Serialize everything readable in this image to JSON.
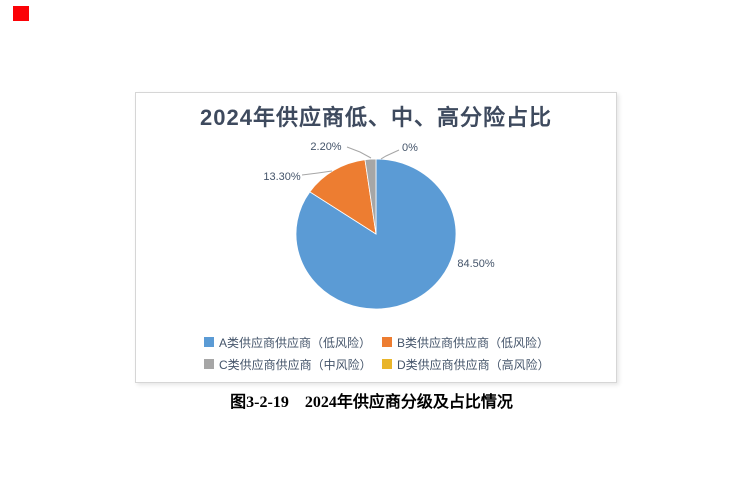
{
  "marker": {
    "color": "#fb0207"
  },
  "chart_data": {
    "type": "pie",
    "title": "2024年供应商低、中、高分险占比",
    "labels": [
      "A类供应商供应商（低风险）",
      "B类供应商供应商（低风险）",
      "C类供应商供应商（中风险）",
      "D类供应商供应商（高风险）"
    ],
    "values": [
      84.5,
      13.3,
      2.2,
      0
    ],
    "value_labels": [
      "84.50%",
      "13.30%",
      "2.20%",
      "0%"
    ],
    "colors": [
      "#5b9bd5",
      "#ed7d31",
      "#a6a6a6",
      "#e9b52a"
    ],
    "start_angle_deg": 0,
    "direction": "clockwise",
    "legend_position": "bottom",
    "legend_rows": 2,
    "title_color": "#3e4a5e",
    "label_color": "#44546a",
    "leader_line_color": "#a6a6a6"
  },
  "caption": {
    "figure_number": "图3-2-19",
    "text": "2024年供应商分级及占比情况"
  }
}
